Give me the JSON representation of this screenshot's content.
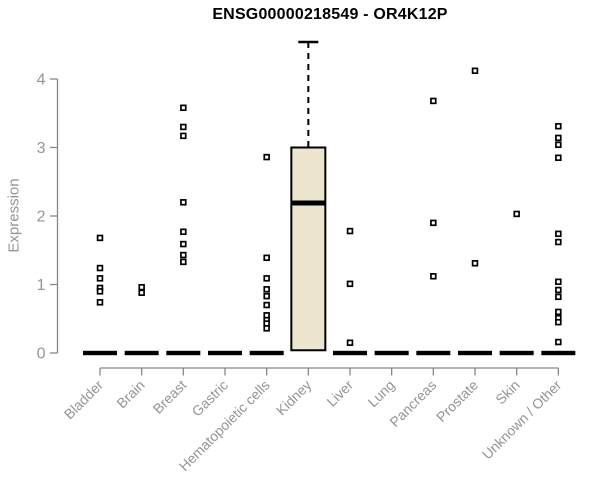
{
  "chart_data": {
    "type": "boxplot",
    "title": "ENSG00000218549 - OR4K12P",
    "ylabel": "Expression",
    "yticks": [
      0,
      1,
      2,
      3,
      4
    ],
    "ylim": [
      0,
      4.6
    ],
    "grid": false,
    "legend": "none",
    "colors": {
      "box_fill": "#ECE6CF",
      "box_border": "#000000",
      "point_color": "#000000",
      "point_fill": "#ffffff",
      "axis_color": "#888888",
      "label_color": "#949494",
      "title_color": "#000000",
      "zero_dash_color": "#000000"
    },
    "categories": [
      "Bladder",
      "Brain",
      "Breast",
      "Gastric",
      "Hematopoietic cells",
      "Kidney",
      "Liver",
      "Lung",
      "Pancreas",
      "Prostate",
      "Skin",
      "Unknown / Other"
    ],
    "series": [
      {
        "category": "Bladder",
        "box": {
          "q1": 0,
          "median": 0,
          "q3": 0,
          "whisker_low": 0,
          "whisker_high": 0
        },
        "points": [
          1.68,
          1.24,
          1.09,
          0.95,
          0.9,
          0.74
        ]
      },
      {
        "category": "Brain",
        "box": {
          "q1": 0,
          "median": 0,
          "q3": 0,
          "whisker_low": 0,
          "whisker_high": 0
        },
        "points": [
          0.96,
          0.88
        ]
      },
      {
        "category": "Breast",
        "box": {
          "q1": 0,
          "median": 0,
          "q3": 0,
          "whisker_low": 0,
          "whisker_high": 0
        },
        "points": [
          3.58,
          3.3,
          3.17,
          2.2,
          1.77,
          1.59,
          1.43,
          1.33
        ]
      },
      {
        "category": "Gastric",
        "box": {
          "q1": 0,
          "median": 0,
          "q3": 0,
          "whisker_low": 0,
          "whisker_high": 0
        },
        "points": []
      },
      {
        "category": "Hematopoietic cells",
        "box": {
          "q1": 0,
          "median": 0,
          "q3": 0,
          "whisker_low": 0,
          "whisker_high": 0
        },
        "points": [
          2.86,
          1.39,
          1.09,
          0.93,
          0.83,
          0.7,
          0.55,
          0.48,
          0.43,
          0.36
        ]
      },
      {
        "category": "Kidney",
        "box": {
          "q1": 0.04,
          "median": 2.19,
          "q3": 3.0,
          "whisker_low": 0.04,
          "whisker_high": 4.54
        },
        "points": []
      },
      {
        "category": "Liver",
        "box": {
          "q1": 0,
          "median": 0,
          "q3": 0,
          "whisker_low": 0,
          "whisker_high": 0
        },
        "points": [
          1.78,
          1.01,
          0.15
        ]
      },
      {
        "category": "Lung",
        "box": {
          "q1": 0,
          "median": 0,
          "q3": 0,
          "whisker_low": 0,
          "whisker_high": 0
        },
        "points": []
      },
      {
        "category": "Pancreas",
        "box": {
          "q1": 0,
          "median": 0,
          "q3": 0,
          "whisker_low": 0,
          "whisker_high": 0
        },
        "points": [
          3.68,
          1.9,
          1.12
        ]
      },
      {
        "category": "Prostate",
        "box": {
          "q1": 0,
          "median": 0,
          "q3": 0,
          "whisker_low": 0,
          "whisker_high": 0
        },
        "points": [
          4.12,
          1.31
        ]
      },
      {
        "category": "Skin",
        "box": {
          "q1": 0,
          "median": 0,
          "q3": 0,
          "whisker_low": 0,
          "whisker_high": 0
        },
        "points": [
          2.03
        ]
      },
      {
        "category": "Unknown / Other",
        "box": {
          "q1": 0,
          "median": 0,
          "q3": 0,
          "whisker_low": 0,
          "whisker_high": 0
        },
        "points": [
          3.31,
          3.14,
          3.04,
          2.85,
          1.74,
          1.62,
          1.04,
          0.92,
          0.82,
          0.6,
          0.51,
          0.45,
          0.16
        ]
      }
    ]
  }
}
